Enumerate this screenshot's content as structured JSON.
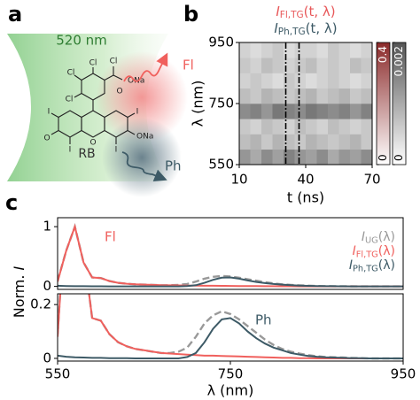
{
  "panel_labels": [
    "a",
    "b",
    "c"
  ],
  "illustration": {
    "wavelength": "520 nm",
    "fl": "Fl",
    "ph": "Ph",
    "molecule": "RB",
    "atoms": [
      "Cl",
      "Cl",
      "Cl",
      "Cl",
      "O",
      "ONa",
      "I",
      "I",
      "I",
      "I",
      "O",
      "O",
      "ONa"
    ]
  },
  "chart_data": [
    {
      "type": "heatmap",
      "labels": [
        {
          "main": "I",
          "sub": "Fl,TG",
          "args": "(t, λ)",
          "color": "#e8585a"
        },
        {
          "main": "I",
          "sub": "Ph,TG",
          "args": "(t, λ)",
          "color": "#3d5a66"
        }
      ],
      "xlabel": "t (ns)",
      "ylabel": "λ (nm)",
      "xlim": [
        10,
        70
      ],
      "xticks": [
        10,
        40,
        70
      ],
      "ylim": [
        550,
        950
      ],
      "yticks": [
        550,
        750,
        950
      ],
      "x": [
        10,
        15,
        20,
        25,
        30,
        35,
        40,
        45,
        50,
        55,
        60,
        65
      ],
      "y": [
        550,
        600,
        650,
        700,
        750,
        800,
        850,
        900
      ],
      "z": [
        [
          0.001,
          0.0008,
          0.0011,
          0.0009,
          0.0012,
          0.001,
          0.0009,
          0.0011,
          0.0008,
          0.001,
          0.0009,
          0.0011
        ],
        [
          0.0006,
          0.0007,
          0.0005,
          0.0007,
          0.0006,
          0.0005,
          0.0007,
          0.0006,
          0.0005,
          0.0006,
          0.0007,
          0.0005
        ],
        [
          0.0005,
          0.0004,
          0.0006,
          0.0005,
          0.0004,
          0.0006,
          0.0005,
          0.0004,
          0.0006,
          0.0005,
          0.0004,
          0.0005
        ],
        [
          0.0011,
          0.0012,
          0.001,
          0.0013,
          0.0012,
          0.0011,
          0.0013,
          0.0012,
          0.0011,
          0.0012,
          0.001,
          0.0012
        ],
        [
          0.0006,
          0.0005,
          0.0007,
          0.0006,
          0.0005,
          0.0006,
          0.0007,
          0.0005,
          0.0006,
          0.0007,
          0.0005,
          0.0006
        ],
        [
          0.0004,
          0.0005,
          0.0004,
          0.0003,
          0.0005,
          0.0004,
          0.0003,
          0.0004,
          0.0005,
          0.0004,
          0.0003,
          0.0004
        ],
        [
          0.0005,
          0.0004,
          0.0006,
          0.0005,
          0.0004,
          0.0005,
          0.0006,
          0.0004,
          0.0005,
          0.0004,
          0.0006,
          0.0005
        ],
        [
          0.0004,
          0.0003,
          0.0004,
          0.0005,
          0.0003,
          0.0004,
          0.0004,
          0.0003,
          0.0005,
          0.0004,
          0.0003,
          0.0004
        ]
      ],
      "gates": [
        31,
        37
      ],
      "colorbars": [
        {
          "color": "#8b2a2a",
          "lim": [
            0,
            0.4
          ],
          "ticks": [
            0,
            0.4
          ]
        },
        {
          "color": "#555555",
          "lim": [
            0,
            0.002
          ],
          "ticks": [
            0,
            0.002
          ]
        }
      ]
    },
    {
      "type": "line",
      "annotation": "Fl",
      "ylabel": {
        "text": "Norm. ",
        "var": "I"
      },
      "xlim": [
        550,
        950
      ],
      "ylim": [
        -0.05,
        1.15
      ],
      "yticks": [
        0,
        1
      ],
      "x": [
        550,
        560,
        570,
        580,
        590,
        600,
        610,
        620,
        630,
        640,
        650,
        660,
        670,
        680,
        690,
        700,
        710,
        720,
        730,
        740,
        750,
        760,
        770,
        780,
        790,
        800,
        810,
        820,
        830,
        840,
        850,
        860,
        870,
        880,
        890,
        900,
        910,
        920,
        930,
        940,
        950
      ],
      "series": [
        {
          "main": "I",
          "sub": "UG",
          "args": "(λ)",
          "color": "#999999",
          "dash": true,
          "values": [
            0.09,
            0.6,
            1.0,
            0.4,
            0.15,
            0.14,
            0.09,
            0.06,
            0.045,
            0.035,
            0.03,
            0.025,
            0.02,
            0.02,
            0.025,
            0.04,
            0.08,
            0.13,
            0.16,
            0.175,
            0.165,
            0.145,
            0.12,
            0.095,
            0.07,
            0.05,
            0.035,
            0.025,
            0.018,
            0.012,
            0.008,
            0.005,
            0.004,
            0.003,
            0.002,
            0.001,
            0,
            0,
            0,
            0,
            0
          ]
        },
        {
          "main": "I",
          "sub": "Fl,TG",
          "args": "(λ)",
          "color": "#f0605d",
          "dash": false,
          "values": [
            0.08,
            0.6,
            1.0,
            0.4,
            0.15,
            0.14,
            0.09,
            0.06,
            0.045,
            0.035,
            0.03,
            0.025,
            0.02,
            0.018,
            0.016,
            0.014,
            0.012,
            0.01,
            0.01,
            0.009,
            0.008,
            0.007,
            0.006,
            0.005,
            0.004,
            0.003,
            0.002,
            0.002,
            0.001,
            0.001,
            0,
            0,
            0,
            0,
            0,
            0,
            0,
            0,
            0,
            0,
            0
          ]
        },
        {
          "main": "I",
          "sub": "Ph,TG",
          "args": "(λ)",
          "color": "#3d5a66",
          "dash": false,
          "values": [
            0.01,
            0.006,
            0.004,
            0.003,
            0.002,
            0.002,
            0.001,
            0.001,
            0.001,
            0,
            0,
            0,
            0,
            0,
            0,
            0.005,
            0.02,
            0.06,
            0.11,
            0.145,
            0.15,
            0.13,
            0.1,
            0.075,
            0.055,
            0.04,
            0.03,
            0.02,
            0.014,
            0.009,
            0.006,
            0.004,
            0.003,
            0.002,
            0.001,
            0.001,
            0,
            0,
            0,
            0,
            0
          ]
        }
      ]
    },
    {
      "type": "line",
      "annotation": "Ph",
      "xlabel": "λ (nm)",
      "xlim": [
        550,
        950
      ],
      "xticks": [
        550,
        750,
        950
      ],
      "ylim": [
        -0.01,
        0.24
      ],
      "yticks": [
        0,
        0.2
      ]
    }
  ]
}
